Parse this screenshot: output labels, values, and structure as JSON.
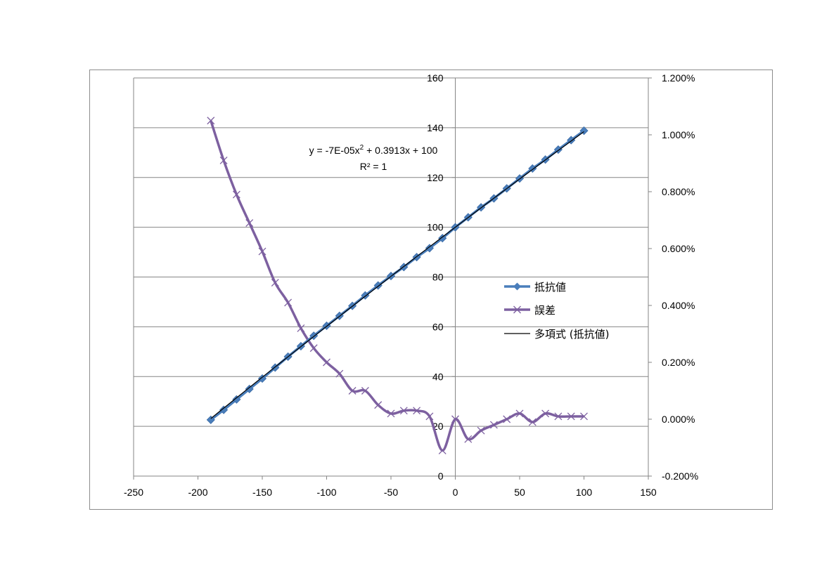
{
  "chart_data": {
    "type": "line",
    "title": "",
    "xlabel": "",
    "ylabel": "",
    "y2label": "",
    "xlim": [
      -250,
      150
    ],
    "ylim": [
      0,
      160
    ],
    "y2lim": [
      -0.002,
      0.012
    ],
    "grid": {
      "horizontal": true,
      "vertical": false
    },
    "legend_position": "right",
    "x_ticks": [
      {
        "value": -250,
        "label": "-250"
      },
      {
        "value": -200,
        "label": "-200"
      },
      {
        "value": -150,
        "label": "-150"
      },
      {
        "value": -100,
        "label": "-100"
      },
      {
        "value": -50,
        "label": "-50"
      },
      {
        "value": 0,
        "label": "0"
      },
      {
        "value": 50,
        "label": "50"
      },
      {
        "value": 100,
        "label": "100"
      },
      {
        "value": 150,
        "label": "150"
      }
    ],
    "y_ticks": [
      {
        "value": 0,
        "label": "0"
      },
      {
        "value": 20,
        "label": "20"
      },
      {
        "value": 40,
        "label": "40"
      },
      {
        "value": 60,
        "label": "60"
      },
      {
        "value": 80,
        "label": "80"
      },
      {
        "value": 100,
        "label": "100"
      },
      {
        "value": 120,
        "label": "120"
      },
      {
        "value": 140,
        "label": "140"
      },
      {
        "value": 160,
        "label": "160"
      }
    ],
    "y2_ticks": [
      {
        "value": -0.002,
        "label": "-0.200%"
      },
      {
        "value": 0.0,
        "label": "0.000%"
      },
      {
        "value": 0.002,
        "label": "0.200%"
      },
      {
        "value": 0.004,
        "label": "0.400%"
      },
      {
        "value": 0.006,
        "label": "0.600%"
      },
      {
        "value": 0.008,
        "label": "0.800%"
      },
      {
        "value": 0.01,
        "label": "1.000%"
      },
      {
        "value": 0.012,
        "label": "1.200%"
      }
    ],
    "x": [
      -190,
      -180,
      -170,
      -160,
      -150,
      -140,
      -130,
      -120,
      -110,
      -100,
      -90,
      -80,
      -70,
      -60,
      -50,
      -40,
      -30,
      -20,
      -10,
      0,
      10,
      20,
      30,
      40,
      50,
      60,
      70,
      80,
      90,
      100
    ],
    "series": [
      {
        "name": "抵抗値",
        "axis": "left",
        "color": "#4a7ebb",
        "marker": "diamond",
        "values": [
          22.6,
          26.6,
          30.8,
          35.0,
          39.2,
          43.6,
          48.0,
          52.2,
          56.4,
          60.4,
          64.4,
          68.4,
          72.6,
          76.6,
          80.4,
          84.0,
          88.0,
          91.6,
          95.6,
          100.0,
          104.0,
          108.0,
          111.6,
          115.6,
          119.6,
          123.6,
          127.2,
          131.2,
          135.0,
          138.8
        ]
      },
      {
        "name": "誤差",
        "axis": "right",
        "color": "#7d60a0",
        "marker": "x",
        "smooth": true,
        "values": [
          0.0105,
          0.0091,
          0.0079,
          0.0069,
          0.0059,
          0.0048,
          0.0041,
          0.0032,
          0.0025,
          0.002,
          0.0016,
          0.001,
          0.001,
          0.0005,
          0.0002,
          0.0003,
          0.0003,
          0.0001,
          -0.0011,
          0.0,
          -0.0007,
          -0.0004,
          -0.0002,
          0.0,
          0.0002,
          -0.0001,
          0.0002,
          0.0001,
          0.0001,
          0.0001
        ]
      }
    ],
    "trendline": {
      "name": "多項式 (抵抗値)",
      "color": "#000000",
      "coefficients": {
        "a": -7e-05,
        "b": 0.3913,
        "c": 100
      },
      "x_range": [
        -190,
        100
      ],
      "equation_prefix": "y = -7E-05x",
      "equation_sup": "2",
      "equation_suffix": " + 0.3913x + 100",
      "r_squared": "R² = 1"
    }
  }
}
